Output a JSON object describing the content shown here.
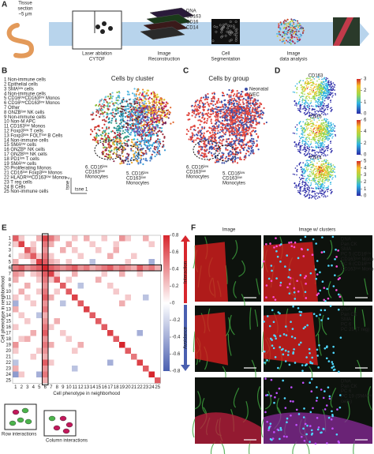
{
  "panel_a": {
    "letter": "A",
    "tissue": [
      "Tissue",
      "section",
      "~5 μm"
    ],
    "steps": [
      [
        "Laser ablation",
        "CYTOF"
      ],
      [
        "Image",
        "Reconstruction"
      ],
      [
        "Cell",
        "Segmentation"
      ],
      [
        "Image",
        "data analysis"
      ]
    ],
    "channels": [
      "DNA",
      "CD163",
      "CD16",
      "CD14"
    ],
    "channel_colors": [
      "#4a7bd8",
      "#e0342c",
      "#4bb34b",
      "#d44bd4"
    ]
  },
  "panel_b": {
    "letter": "B",
    "title": "Cells by cluster",
    "clusters": [
      "1  Non-immune cells",
      "2  Epithelial cells",
      "3  SMAˡᵒʷ cells",
      "4  Non-immune cells",
      "5  CD16ˡᵒʷCD163ˡᵒʷ Monos",
      "6  CD16ˡᵒʷCD163ˡᵒʷ Monos",
      "7  Other",
      "8  GNZBˡᵒʷ NK cells",
      "9  Non-immune cells",
      "10  Non-M APC",
      "11  CD163ˡᵒʷ Monos",
      "12  Foxp3ˡᵒʷ T cells",
      "13  Foxp3ˡᵒʷ FOLTˡᵒʷ B Cells",
      "14  Non-immune cells",
      "15  SMAˡᵒʷ cells",
      "16  GNZBʰⁱ NK cells",
      "17  GNZBˡᵒʷ NK cells",
      "18  PD1ˡᵒʷ T cells",
      "19  SMAˡᵒʷ cells",
      "20  Proliferating Monos",
      "21  CD16ˡᵒʷ Foxp3ˡᵒʷ Monos",
      "22  HLADRˡᵒʷCD163ˡᵒʷ Monos",
      "23  T reg cells",
      "24  B Cells",
      "25  Non-immune cells"
    ],
    "cluster_colors": [
      "#5a5fb5",
      "#4d7fc9",
      "#3c9ad6",
      "#2fb4d8",
      "#c2185b",
      "#d0342c",
      "#7c4fb2",
      "#41a5d8",
      "#57b8e0",
      "#6cc4d9",
      "#1f8fa0",
      "#3aa08e",
      "#8cbd3a",
      "#b9c93a",
      "#d8cf2e",
      "#e8c12e",
      "#eaa52a",
      "#e8862a",
      "#e0662c",
      "#d9462e",
      "#b83a3a",
      "#9c2f3e",
      "#8a2b4a",
      "#7a2a5a",
      "#6b2a30"
    ],
    "annotation_6": [
      "6. CD16ˡᵒʷ",
      "CD163ˡᵒʷ",
      "Monocytes"
    ],
    "annotation_5": [
      "5. CD16ˡᵒʷ",
      "CD163ˡᵒʷ",
      "Monocytes"
    ],
    "axis_1": "tsne 1",
    "axis_2": "tsne 2"
  },
  "panel_c": {
    "letter": "C",
    "title": "Cells by group",
    "legend": [
      "Neonatal",
      "NEC"
    ],
    "colors": [
      "#3b4fa8",
      "#e0473f"
    ],
    "annotation_6": [
      "6. CD16ˡᵒʷ",
      "CD163ˡᵒʷ",
      "Monocytes"
    ],
    "annotation_5": [
      "5. CD16ˡᵒʷ",
      "CD163ˡᵒʷ",
      "Monocytes"
    ]
  },
  "panel_d": {
    "letter": "D",
    "markers": [
      {
        "name": "CD163",
        "lim": [
          0,
          3
        ],
        "ticks": [
          0,
          1,
          2,
          3
        ]
      },
      {
        "name": "CD16",
        "lim": [
          0,
          6
        ],
        "ticks": [
          0,
          2,
          4,
          6
        ]
      },
      {
        "name": "CD14",
        "lim": [
          0,
          5
        ],
        "ticks": [
          0,
          1,
          2,
          3,
          4,
          5
        ]
      }
    ]
  },
  "panel_e": {
    "letter": "E",
    "labels": [
      1,
      2,
      3,
      4,
      5,
      6,
      7,
      8,
      9,
      10,
      11,
      12,
      13,
      14,
      15,
      16,
      17,
      18,
      19,
      20,
      21,
      22,
      23,
      24,
      25
    ],
    "xlabel": "Cell phenotype in neighborhood",
    "ylabel": "Cell phenotype in neighborhood",
    "clim": [
      -0.8,
      0.8
    ],
    "cticks": [
      -0.8,
      -0.6,
      -0.4,
      -0.2,
      0,
      0.2,
      0.4,
      0.6,
      0.8
    ],
    "positive_color": "#d7262d",
    "negative_color": "#4a5fb0",
    "interaction": "Interaction",
    "avoidance": "Avoidance",
    "row_text": "Row interactions",
    "column_text": "Column interactions",
    "matrix": [
      [
        0.6,
        0.2,
        0,
        0,
        0.3,
        0.7,
        0.5,
        0.3,
        0,
        0,
        0.2,
        0,
        0.3,
        0,
        0,
        0.2,
        0,
        0,
        0.4,
        0.2,
        0,
        0,
        0.3,
        0,
        0
      ],
      [
        0.2,
        0.7,
        0,
        0.2,
        0,
        0.5,
        0.3,
        0,
        0,
        0.3,
        0,
        0,
        0,
        0.2,
        0,
        0,
        0,
        0.2,
        0,
        0,
        0,
        0,
        0,
        0.2,
        0
      ],
      [
        0,
        0,
        0.6,
        0.3,
        0,
        0.4,
        0,
        0,
        0.3,
        0,
        0.2,
        0,
        0,
        0,
        0.2,
        0,
        0,
        0.3,
        0,
        0,
        0,
        0,
        0,
        0,
        0
      ],
      [
        0,
        0.2,
        0.3,
        0.6,
        0.2,
        0.5,
        0.2,
        0,
        0,
        0,
        0,
        0.2,
        0,
        0,
        0,
        0,
        0.3,
        0,
        0,
        0,
        0.2,
        0,
        0,
        0,
        0
      ],
      [
        0.3,
        0,
        0,
        0.2,
        0.7,
        0.6,
        0.3,
        0.2,
        0,
        0.2,
        0,
        0,
        0,
        -0.3,
        0,
        0,
        0,
        0,
        0,
        0.2,
        0,
        0,
        0,
        -0.4,
        0
      ],
      [
        0.5,
        0.6,
        0.4,
        0.5,
        0.6,
        0.8,
        0.6,
        0.5,
        0.4,
        0.5,
        0.6,
        0.4,
        0.5,
        0.3,
        0.4,
        0.5,
        0.6,
        0.4,
        0.5,
        0.4,
        0.3,
        0.6,
        0.4,
        0.5,
        0.3
      ],
      [
        0.4,
        0.3,
        0,
        0.2,
        0.3,
        0.6,
        0.7,
        0.2,
        0,
        0,
        0.3,
        0,
        0,
        0,
        0,
        0.2,
        0,
        0,
        0.3,
        0,
        0,
        0.2,
        0,
        0,
        0
      ],
      [
        0.3,
        0,
        0,
        0,
        0.2,
        0.5,
        0.2,
        0.6,
        0,
        0.2,
        0,
        0,
        0,
        0,
        0.3,
        0,
        0,
        0,
        0,
        0,
        0,
        0,
        0,
        0,
        0
      ],
      [
        0,
        0,
        0.3,
        0,
        0,
        0.4,
        0,
        0,
        0.6,
        0,
        0,
        -0.3,
        0,
        0,
        0,
        0,
        0.2,
        0,
        0,
        0,
        0,
        0,
        0,
        0,
        0
      ],
      [
        0,
        0.3,
        0,
        0,
        0.2,
        0.5,
        0,
        0.2,
        0,
        0.6,
        0,
        0,
        0,
        0,
        0,
        0,
        0,
        0.2,
        0,
        0,
        0,
        0,
        0,
        0,
        0
      ],
      [
        0.2,
        0,
        0.2,
        0,
        0,
        0.6,
        0.3,
        0,
        0,
        0,
        0.7,
        0,
        0,
        0,
        0,
        0,
        0,
        0,
        0,
        0.2,
        0,
        0,
        -0.3,
        0,
        0
      ],
      [
        -0.4,
        0,
        0,
        0.2,
        0,
        0.4,
        0,
        0,
        -0.3,
        0,
        0,
        0.6,
        0,
        0,
        0,
        0,
        0,
        0,
        0.3,
        0,
        0,
        0,
        0,
        0,
        0
      ],
      [
        0.3,
        0,
        0,
        0,
        0,
        0.5,
        0,
        0,
        0,
        0,
        0,
        0,
        0.7,
        0,
        0,
        0,
        0,
        0,
        0,
        0,
        0,
        0,
        0,
        0,
        0
      ],
      [
        0,
        0.2,
        0,
        0,
        -0.3,
        0.3,
        0,
        0,
        0,
        0,
        0,
        0,
        0,
        0.6,
        0,
        0,
        0,
        0,
        0,
        0,
        0,
        0,
        0,
        0,
        0
      ],
      [
        0,
        0,
        0.2,
        0,
        0,
        0.4,
        0,
        0.3,
        0,
        0,
        0,
        0,
        0,
        0,
        0.6,
        0,
        0,
        0,
        0,
        0,
        0,
        0,
        0,
        0,
        0
      ],
      [
        0.2,
        0,
        0,
        0,
        0,
        0.5,
        0.2,
        0,
        0,
        0,
        0,
        0,
        0,
        0,
        0,
        0.6,
        0,
        0,
        0,
        0,
        0,
        0,
        0,
        0,
        0
      ],
      [
        0,
        0,
        0,
        0.3,
        0,
        0.6,
        0,
        0,
        0.2,
        0,
        0,
        0,
        0,
        0,
        0,
        0,
        0.7,
        0,
        0,
        0,
        0,
        -0.4,
        0,
        0,
        0
      ],
      [
        0,
        0.2,
        0.3,
        0,
        0,
        0.4,
        0,
        0,
        0,
        0.2,
        0,
        0,
        0,
        0,
        0,
        0,
        0,
        0.6,
        0,
        0,
        0,
        0,
        0,
        0,
        0
      ],
      [
        0.4,
        0,
        0,
        0,
        0,
        0.5,
        0.3,
        0,
        0,
        0,
        0,
        0.3,
        0,
        0,
        0,
        0,
        0,
        0,
        0.8,
        0,
        0,
        0,
        0,
        0,
        0
      ],
      [
        0.2,
        0,
        0,
        0,
        0.2,
        0.4,
        0,
        0,
        0,
        0,
        0.2,
        0,
        0,
        0,
        0,
        0,
        0,
        0,
        0,
        0.6,
        0,
        0,
        0,
        0,
        0
      ],
      [
        0,
        0,
        0,
        0.2,
        0,
        0.3,
        0,
        0,
        0,
        0,
        0,
        0,
        0,
        0,
        0,
        0,
        0,
        0,
        0,
        0,
        0.5,
        0,
        0,
        0,
        0
      ],
      [
        -0.3,
        0,
        0,
        0,
        0,
        0.6,
        0.2,
        0,
        0,
        0,
        0,
        0,
        0,
        0,
        0,
        0,
        -0.4,
        0,
        0,
        0,
        0,
        0.7,
        0,
        0,
        0
      ],
      [
        0.3,
        0,
        0,
        0,
        0,
        0.4,
        0,
        0,
        0,
        0,
        -0.3,
        0,
        0,
        0,
        0,
        0,
        0,
        0,
        0,
        0,
        0,
        0,
        0.6,
        0,
        0
      ],
      [
        -0.5,
        0.2,
        0,
        0,
        -0.4,
        0.5,
        0,
        0,
        0,
        0,
        0,
        0,
        0,
        0,
        0,
        0,
        0,
        0,
        0,
        0,
        0,
        0,
        0,
        0.8,
        0
      ],
      [
        0,
        0,
        0,
        0,
        0,
        0.3,
        0,
        0,
        0,
        0,
        0,
        0,
        0,
        0,
        0,
        0,
        0,
        0,
        0,
        0,
        0,
        0,
        0,
        0,
        0.6
      ]
    ]
  },
  "panel_f": {
    "letter": "F",
    "headers": [
      "Image",
      "Image w/ clusters"
    ],
    "rows": [
      {
        "labels": [
          "DNA",
          "Pan CK",
          "SMA",
          "PC 5 (CD16ˡᵒʷ",
          "CD163ˡᵒʷ Mono",
          "PC 6 (CD16ˡᵒʷ",
          "CD163ˡᵒʷ Mono"
        ],
        "colors": [
          "#6f8cff",
          "#4bd04b",
          "#ff3a3a",
          "#ff4fd8",
          "#ff4fd8",
          "#4fd8ff",
          "#4fd8ff"
        ]
      },
      {
        "labels": [
          "DNA",
          "Pan CK",
          "SMA",
          "PC 6",
          "PC 23 (T reg)"
        ],
        "colors": [
          "#6f8cff",
          "#4bd04b",
          "#ff3a3a",
          "#4fd8ff",
          "#d0a040"
        ]
      },
      {
        "labels": [
          "DNA",
          "Pan CK",
          "PC 6",
          "PC 19 (SMAˡᵒʷ",
          "cells)"
        ],
        "colors": [
          "#6f8cff",
          "#4bd04b",
          "#4fd8ff",
          "#c050ff",
          "#c050ff"
        ]
      }
    ]
  }
}
